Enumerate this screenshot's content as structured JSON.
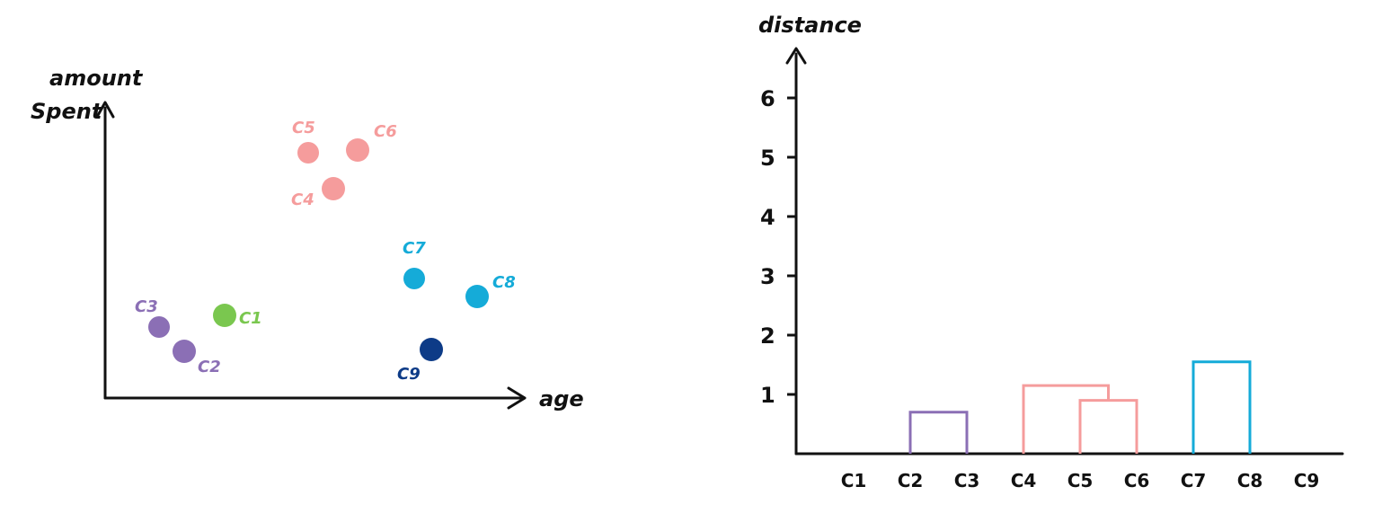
{
  "scatter": {
    "x_axis_label": "age",
    "y_axis_label_line1": "amount",
    "y_axis_label_line2": "Spent",
    "points": [
      {
        "label": "C1",
        "cluster": "green"
      },
      {
        "label": "C2",
        "cluster": "purple"
      },
      {
        "label": "C3",
        "cluster": "purple"
      },
      {
        "label": "C4",
        "cluster": "pink"
      },
      {
        "label": "C5",
        "cluster": "pink"
      },
      {
        "label": "C6",
        "cluster": "pink"
      },
      {
        "label": "C7",
        "cluster": "cyan"
      },
      {
        "label": "C8",
        "cluster": "cyan"
      },
      {
        "label": "C9",
        "cluster": "navy"
      }
    ]
  },
  "dendrogram": {
    "y_axis_label": "distance",
    "y_ticks": [
      "1",
      "2",
      "3",
      "4",
      "5",
      "6"
    ],
    "leaves": [
      "C1",
      "C2",
      "C3",
      "C4",
      "C5",
      "C6",
      "C7",
      "C8",
      "C9"
    ],
    "merges": [
      {
        "left": "C2",
        "right": "C3",
        "height": 0.7,
        "color": "purple"
      },
      {
        "left": "C5",
        "right": "C6",
        "height": 0.9,
        "color": "pink"
      },
      {
        "left": "C4",
        "right": "C5+C6",
        "height": 1.15,
        "color": "pink"
      },
      {
        "left": "C7",
        "right": "C8",
        "height": 1.55,
        "color": "cyan"
      }
    ]
  },
  "colors": {
    "purple": "#8b6fb5",
    "pink": "#f59c9c",
    "cyan": "#15abd8",
    "green": "#7ac74f",
    "navy": "#0d3b87"
  }
}
